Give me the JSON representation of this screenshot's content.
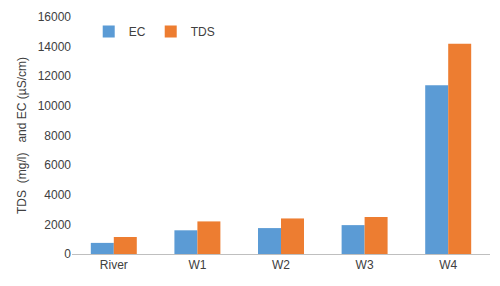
{
  "chart_data": {
    "type": "bar",
    "y_label": "TDS  (mg/l)   and EC (µS/cm)",
    "categories": [
      "River",
      "W1",
      "W2",
      "W3",
      "W4"
    ],
    "series": [
      {
        "name": "EC",
        "color": "#5b9bd5",
        "values": [
          750,
          1600,
          1750,
          1950,
          11400
        ]
      },
      {
        "name": "TDS",
        "color": "#ed7d31",
        "values": [
          1150,
          2200,
          2400,
          2500,
          14200
        ]
      }
    ],
    "ylim": [
      0,
      16000
    ],
    "yticks": [
      0,
      2000,
      4000,
      6000,
      8000,
      10000,
      12000,
      14000,
      16000
    ],
    "grid": false,
    "legend": "upper left"
  }
}
